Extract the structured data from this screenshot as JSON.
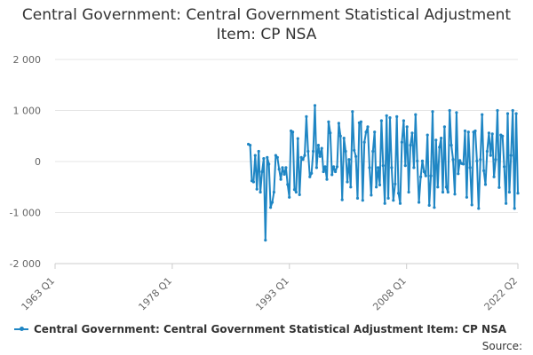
{
  "chart_data": {
    "type": "line",
    "title": "Central Government: Central Government Statistical Adjustment Item: CP NSA",
    "xlabel": "",
    "ylabel": "",
    "x_ticks": [
      "1963 Q1",
      "1978 Q1",
      "1993 Q1",
      "2008 Q1",
      "2022 Q2"
    ],
    "y_ticks": [
      "2 000",
      "1 000",
      "0",
      "-1 000",
      "-2 000"
    ],
    "ylim": [
      -2000,
      2000
    ],
    "grid": true,
    "legend_position": "bottom-left",
    "x_start": "1963 Q1",
    "x_end": "2022 Q2",
    "series_start_index": 99,
    "series": [
      {
        "name": "Central Government: Central Government Statistical Adjustment Item: CP NSA",
        "color": "#1f86c4",
        "values": [
          340,
          320,
          -380,
          -400,
          120,
          -540,
          200,
          -600,
          -200,
          60,
          -1540,
          80,
          -50,
          -900,
          -800,
          -600,
          120,
          80,
          -150,
          -350,
          -120,
          -250,
          -120,
          -450,
          -700,
          600,
          580,
          -550,
          -600,
          450,
          -650,
          80,
          40,
          120,
          880,
          200,
          -300,
          -230,
          200,
          1100,
          -120,
          320,
          100,
          260,
          -200,
          -100,
          -350,
          780,
          560,
          -260,
          -100,
          -200,
          -100,
          750,
          500,
          -750,
          460,
          200,
          -400,
          40,
          -500,
          980,
          220,
          100,
          -720,
          760,
          780,
          -760,
          380,
          580,
          680,
          -120,
          -660,
          200,
          580,
          -500,
          -120,
          -460,
          800,
          -80,
          -820,
          900,
          -720,
          860,
          -120,
          -760,
          -440,
          880,
          -620,
          -820,
          380,
          800,
          -80,
          680,
          -600,
          320,
          560,
          -120,
          920,
          10,
          -800,
          -300,
          10,
          -200,
          -280,
          520,
          -860,
          -280,
          980,
          -900,
          420,
          -500,
          280,
          460,
          -600,
          680,
          -500,
          -600,
          1000,
          320,
          40,
          -640,
          960,
          -240,
          20,
          -40,
          -50,
          600,
          -700,
          580,
          -120,
          -850,
          580,
          600,
          10,
          -920,
          40,
          920,
          -180,
          -450,
          200,
          560,
          120,
          540,
          -300,
          40,
          1000,
          -510,
          520,
          500,
          -100,
          -820,
          940,
          -600,
          120,
          1000,
          -920,
          940,
          -620
        ]
      }
    ]
  },
  "footer": {
    "source_label": "Source:"
  }
}
